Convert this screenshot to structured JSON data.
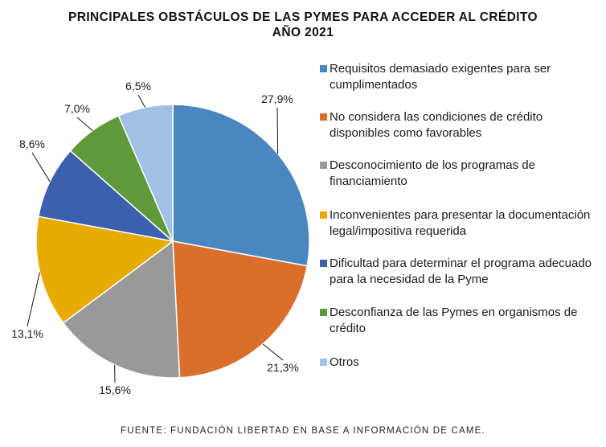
{
  "header": {
    "title_line1": "PRINCIPALES OBSTÁCULOS DE LAS PYMES PARA ACCEDER AL CRÉDITO",
    "title_line2": "AÑO 2021"
  },
  "source": "FUENTE: FUNDACIÓN LIBERTAD EN BASE A INFORMACIÓN DE CAME.",
  "chart_data": {
    "type": "pie",
    "title": "PRINCIPALES OBSTÁCULOS DE LAS PYMES PARA ACCEDER AL CRÉDITO AÑO 2021",
    "legend_position": "right",
    "start_angle": "top",
    "direction": "clockwise",
    "slices": [
      {
        "label": "Requisitos demasiado exigentes para ser cumplimentados",
        "value": 27.9,
        "value_label": "27,9%",
        "color": "#4A86C0"
      },
      {
        "label": "No considera las condiciones de crédito disponibles como favorables",
        "value": 21.3,
        "value_label": "21,3%",
        "color": "#D96F2B"
      },
      {
        "label": "Desconocimiento de los programas de financiamiento",
        "value": 15.6,
        "value_label": "15,6%",
        "color": "#999999"
      },
      {
        "label": "Inconvenientes para presentar la documentación legal/impositiva requerida",
        "value": 13.1,
        "value_label": "13,1%",
        "color": "#E7AB00"
      },
      {
        "label": "Dificultad para determinar el programa adecuado para la necesidad de la Pyme",
        "value": 8.6,
        "value_label": "8,6%",
        "color": "#3A60AE"
      },
      {
        "label": "Desconfianza de las Pymes en organismos de crédito",
        "value": 7.0,
        "value_label": "7,0%",
        "color": "#5E9A3A"
      },
      {
        "label": "Otros",
        "value": 6.5,
        "value_label": "6,5%",
        "color": "#A0C0E4"
      }
    ]
  }
}
